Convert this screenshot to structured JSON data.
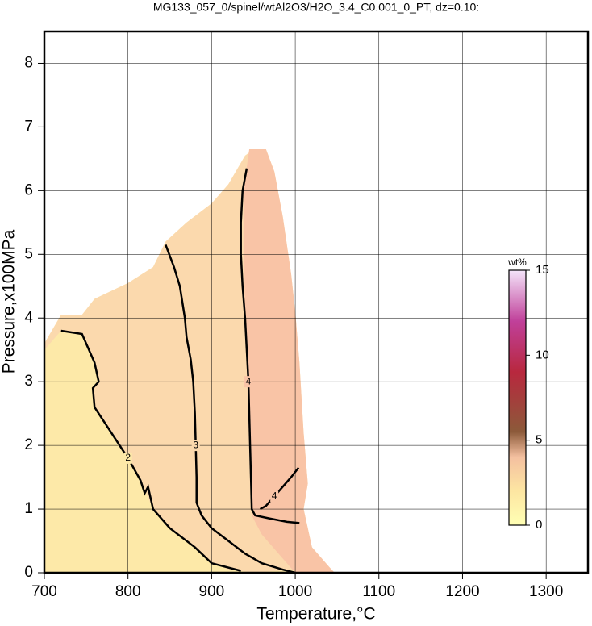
{
  "chart_data": {
    "type": "contour",
    "title": "MG133_057_0/spinel/wtAl2O3/H2O_3.4_C0.001_0_PT, dz=0.10:",
    "x_label": "Temperature,°C",
    "y_label": "Pressure,x100MPa",
    "xlim": [
      700,
      1350
    ],
    "xticks": [
      700,
      800,
      900,
      1000,
      1100,
      1200,
      1300
    ],
    "ylim": [
      0,
      8.5
    ],
    "yticks": [
      0,
      1,
      2,
      3,
      4,
      5,
      6,
      7,
      8
    ],
    "grid": true,
    "fills": [
      {
        "color": "#fde9a8",
        "x": [
          700,
          700,
          720,
          745,
          760,
          800,
          830,
          845,
          870,
          900,
          920,
          940,
          950,
          965,
          975,
          985,
          995,
          1000,
          1005,
          1010,
          1015,
          1010,
          1020,
          1040,
          1047
        ],
        "y": [
          0,
          3.6,
          4.05,
          4.05,
          4.3,
          4.55,
          4.8,
          5.2,
          5.5,
          5.8,
          6.1,
          6.55,
          6.65,
          6.65,
          6.3,
          5.6,
          4.7,
          4.1,
          3.3,
          2.2,
          1.4,
          1.0,
          0.4,
          0.1,
          0
        ]
      },
      {
        "color": "#fbd9ad",
        "x": [
          700,
          720,
          745,
          760,
          800,
          830,
          845,
          870,
          900,
          920,
          940,
          946,
          948,
          960,
          980,
          1000,
          950,
          920,
          900,
          880,
          850,
          830,
          820,
          800,
          775,
          760,
          758,
          765,
          760,
          745,
          720,
          700
        ],
        "y": [
          3.6,
          4.05,
          4.05,
          4.3,
          4.55,
          4.8,
          5.2,
          5.5,
          5.8,
          6.1,
          6.55,
          6.6,
          1.0,
          0.6,
          0.3,
          0.05,
          0,
          0.05,
          0.15,
          0.4,
          0.7,
          1.0,
          1.3,
          1.8,
          2.3,
          2.6,
          2.9,
          3.0,
          3.3,
          3.75,
          3.8,
          3.5
        ]
      },
      {
        "color": "#f9c4a6",
        "x": [
          945,
          965,
          975,
          985,
          995,
          1000,
          1005,
          1010,
          1015,
          1010,
          1020,
          1040,
          1047,
          1000,
          980,
          960,
          948,
          945,
          940,
          938
        ],
        "y": [
          6.65,
          6.65,
          6.3,
          5.6,
          4.7,
          4.1,
          3.3,
          2.2,
          1.4,
          1.0,
          0.4,
          0.1,
          0,
          0,
          0.3,
          0.6,
          0.9,
          2.0,
          4.0,
          6.0
        ]
      }
    ],
    "contours": [
      {
        "level": 2,
        "x": [
          720,
          745,
          760,
          765,
          758,
          760,
          775,
          800,
          815,
          820,
          824,
          830,
          850,
          880,
          900,
          935
        ],
        "y": [
          3.8,
          3.75,
          3.3,
          3.0,
          2.9,
          2.6,
          2.3,
          1.8,
          1.45,
          1.25,
          1.35,
          1.0,
          0.7,
          0.4,
          0.15,
          0.03
        ]
      },
      {
        "level": 3,
        "x": [
          845,
          855,
          862,
          868,
          870,
          875,
          878,
          880,
          881,
          882,
          882,
          888,
          900,
          920,
          940,
          960,
          985,
          1000
        ],
        "y": [
          5.15,
          4.8,
          4.5,
          4.0,
          3.7,
          3.35,
          3.0,
          2.5,
          2.0,
          1.5,
          1.1,
          0.9,
          0.7,
          0.5,
          0.3,
          0.15,
          0.05,
          0.0
        ]
      },
      {
        "level": 4,
        "x": [
          942,
          937,
          935,
          935,
          937,
          940,
          942,
          944,
          945,
          946,
          947,
          948,
          952,
          970,
          990,
          1005
        ],
        "y": [
          6.35,
          6.0,
          5.5,
          5.0,
          4.5,
          4.0,
          3.5,
          3.0,
          2.5,
          2.0,
          1.5,
          1.0,
          0.9,
          0.85,
          0.8,
          0.78
        ]
      },
      {
        "level": 4,
        "x": [
          958,
          965,
          975,
          985,
          995,
          1004
        ],
        "y": [
          1.0,
          1.05,
          1.2,
          1.35,
          1.5,
          1.65
        ]
      }
    ],
    "contour_color": "#000000",
    "colorbar": {
      "label": "wt%",
      "lim": [
        0,
        15
      ],
      "ticks": [
        0,
        5,
        10,
        15
      ],
      "colormap": [
        {
          "value": 0,
          "color": "#ffffb4"
        },
        {
          "value": 2,
          "color": "#fde6a2"
        },
        {
          "value": 4,
          "color": "#f4c0a0"
        },
        {
          "value": 5.5,
          "color": "#8c5a3a"
        },
        {
          "value": 9,
          "color": "#b8283e"
        },
        {
          "value": 12,
          "color": "#c0409a"
        },
        {
          "value": 15,
          "color": "#f4e4fa"
        }
      ]
    }
  }
}
